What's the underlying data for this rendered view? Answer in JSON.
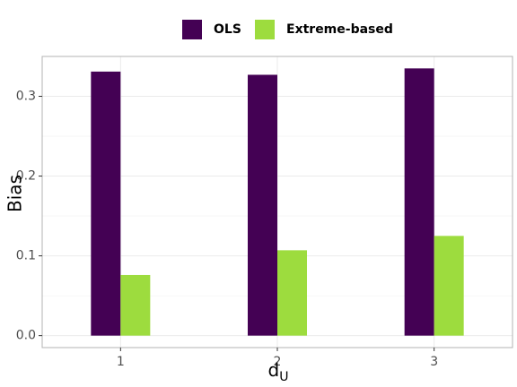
{
  "chart_data": {
    "type": "bar",
    "categories": [
      "1",
      "2",
      "3"
    ],
    "series": [
      {
        "name": "OLS",
        "values": [
          0.331,
          0.327,
          0.335
        ],
        "color": "#440154"
      },
      {
        "name": "Extreme-based",
        "values": [
          0.076,
          0.107,
          0.125
        ],
        "color": "#9ddc3e"
      }
    ],
    "ylabel": "Bias",
    "xlabel_main": "d",
    "xlabel_sub": "U",
    "ylim": [
      -0.015,
      0.35
    ],
    "yticks": [
      0.0,
      0.1,
      0.2,
      0.3
    ],
    "ytick_labels": [
      "0.0",
      "0.1",
      "0.2",
      "0.3"
    ],
    "grid": true,
    "legend_position": "top"
  }
}
